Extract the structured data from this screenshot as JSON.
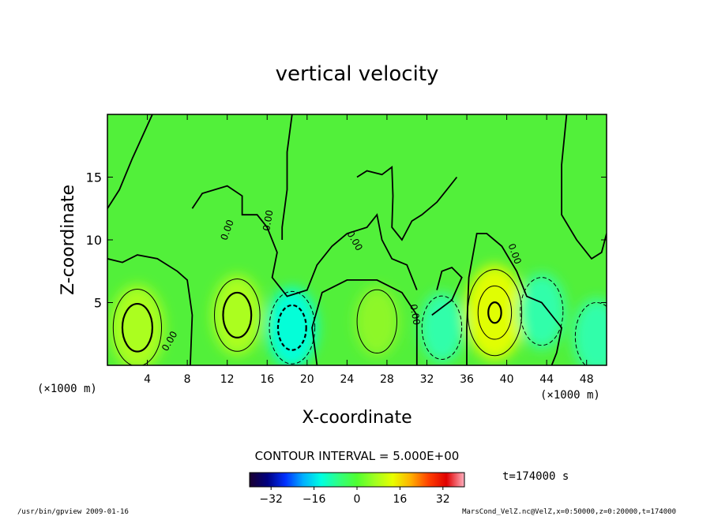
{
  "chart_data": {
    "type": "contour",
    "title": "vertical velocity",
    "xlabel": "X-coordinate",
    "ylabel": "Z-coordinate",
    "x_unit": "(×1000 m)",
    "y_unit": "(×1000 m)",
    "xlim": [
      0,
      50
    ],
    "ylim": [
      0,
      20
    ],
    "x_ticks": [
      4,
      8,
      12,
      16,
      20,
      24,
      28,
      32,
      36,
      40,
      44,
      48
    ],
    "y_ticks": [
      5,
      10,
      15
    ],
    "contour_interval": "CONTOUR INTERVAL = 5.000E+00",
    "zero_label": "0.00",
    "time_label": "t=174000 s",
    "colorbar": {
      "range": [
        -40,
        40
      ],
      "ticks": [
        -32,
        -16,
        0,
        16,
        32
      ],
      "tick_labels": [
        "−32",
        "−16",
        "0",
        "16",
        "32"
      ],
      "colors": [
        "#1a0030",
        "#000080",
        "#0030ff",
        "#00b0ff",
        "#00ffe0",
        "#30ff80",
        "#50ff30",
        "#a0ff20",
        "#e8ff00",
        "#ffb000",
        "#ff4000",
        "#e00000",
        "#ffb0c0"
      ]
    },
    "background_color": "#52f03a",
    "features": [
      {
        "kind": "updraft",
        "x": 3,
        "z": 3,
        "peak": 12
      },
      {
        "kind": "updraft",
        "x": 13,
        "z": 4,
        "peak": 10
      },
      {
        "kind": "downdraft",
        "x": 18.5,
        "z": 3,
        "peak": -10
      },
      {
        "kind": "updraft",
        "x": 27,
        "z": 3.5,
        "peak": 6
      },
      {
        "kind": "downdraft",
        "x": 33.5,
        "z": 3,
        "peak": -6
      },
      {
        "kind": "updraft",
        "x": 38.8,
        "z": 4.2,
        "peak": 16
      },
      {
        "kind": "downdraft",
        "x": 43.5,
        "z": 4.3,
        "peak": -8
      },
      {
        "kind": "downdraft",
        "x": 49,
        "z": 2.3,
        "peak": -8
      }
    ]
  },
  "footer": {
    "left": "/usr/bin/gpview  2009-01-16",
    "right": "MarsCond_VelZ.nc@VelZ,x=0:50000,z=0:20000,t=174000"
  }
}
